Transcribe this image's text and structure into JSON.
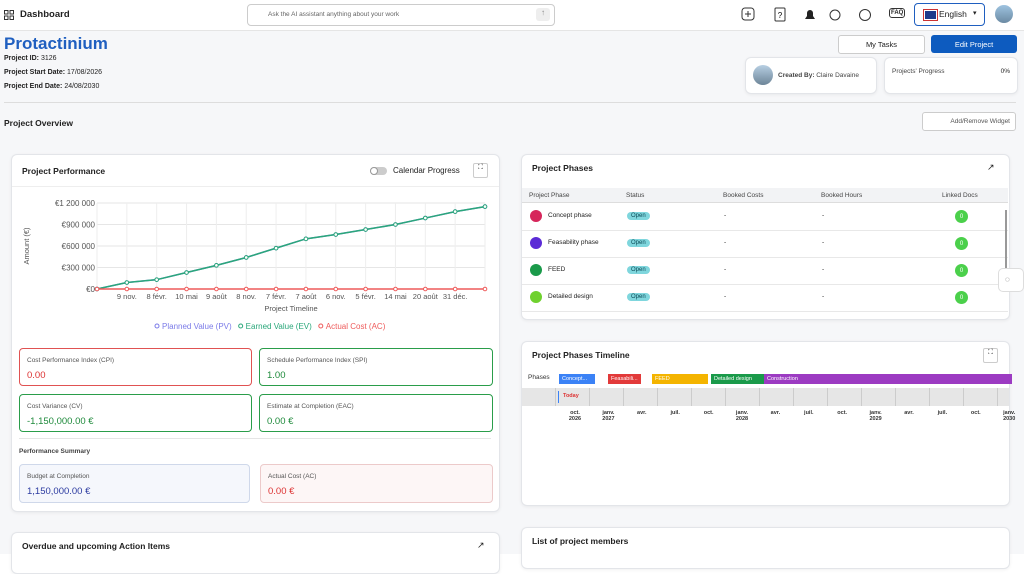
{
  "nav": {
    "title": "Dashboard",
    "search_placeholder": "Ask the AI assistant anything about your work",
    "faq": "FAQ",
    "language": "English"
  },
  "project": {
    "name": "Protactinium",
    "id_label": "Project ID:",
    "id": "3126",
    "start_label": "Project Start Date:",
    "start": "17/08/2026",
    "end_label": "Project End Date:",
    "end": "24/08/2030"
  },
  "buttons": {
    "my_tasks": "My Tasks",
    "edit": "Edit Project",
    "widget": "Add/Remove Widget"
  },
  "created_by": {
    "label": "Created By:",
    "name": "Claire Davaine"
  },
  "progress": {
    "label": "Projects' Progress",
    "value": "0%"
  },
  "overview_title": "Project Overview",
  "performance": {
    "title": "Project Performance",
    "toggle": "Calendar Progress",
    "kpis": [
      {
        "label": "Cost Performance Index (CPI)",
        "value": "0.00"
      },
      {
        "label": "Schedule Performance Index (SPI)",
        "value": "1.00"
      },
      {
        "label": "Cost Variance (CV)",
        "value": "-1,150,000.00 €"
      },
      {
        "label": "Estimate at Completion (EAC)",
        "value": "0.00 €"
      }
    ],
    "summary_title": "Performance Summary",
    "summary": [
      {
        "label": "Budget at Completion",
        "value": "1,150,000.00 €"
      },
      {
        "label": "Actual Cost (AC)",
        "value": "0.00 €"
      }
    ]
  },
  "chart_data": {
    "type": "line",
    "ylabel": "Amount (€)",
    "xlabel": "Project Timeline",
    "categories": [
      null,
      "9 nov.",
      "8 févr.",
      "10 mai",
      "9 août",
      "8 nov.",
      "7 févr.",
      "7 août",
      "6 nov.",
      "5 févr.",
      "14 mai",
      "20 août",
      "31 déc.",
      null
    ],
    "series": [
      {
        "name": "Planned Value (PV)",
        "color": "#7b7be8",
        "values": [
          0,
          90000,
          130000,
          230000,
          330000,
          440000,
          570000,
          700000,
          760000,
          830000,
          900000,
          990000,
          1080000,
          1150000
        ]
      },
      {
        "name": "Earned Value (EV)",
        "color": "#2aa77a",
        "values": [
          0,
          90000,
          130000,
          230000,
          330000,
          440000,
          570000,
          700000,
          760000,
          830000,
          900000,
          990000,
          1080000,
          1150000
        ]
      },
      {
        "name": "Actual Cost (AC)",
        "color": "#ee5a5a",
        "values": [
          0,
          0,
          0,
          0,
          0,
          0,
          0,
          0,
          0,
          0,
          0,
          0,
          0,
          0
        ]
      }
    ],
    "ylim": [
      0,
      1200000
    ],
    "yticks": [
      {
        "value": 0,
        "label": "€0"
      },
      {
        "value": 300000,
        "label": "€300 000"
      },
      {
        "value": 600000,
        "label": "€600 000"
      },
      {
        "value": 900000,
        "label": "€900 000"
      },
      {
        "value": 1200000,
        "label": "€1 200 000"
      }
    ],
    "grid": true
  },
  "phases": {
    "title": "Project Phases",
    "columns": [
      "Project Phase",
      "Status",
      "Booked Costs",
      "Booked Hours",
      "Linked Docs"
    ],
    "rows": [
      [
        "Concept phase",
        "Open",
        "-",
        "-",
        "0"
      ],
      [
        "Feasability phase",
        "Open",
        "-",
        "-",
        "0"
      ],
      [
        "FEED",
        "Open",
        "-",
        "-",
        "0"
      ],
      [
        "Detailed design",
        "Open",
        "-",
        "-",
        "0"
      ]
    ]
  },
  "timeline": {
    "title": "Project Phases Timeline",
    "row_label": "Phases",
    "bars": [
      "Concept...",
      "Feasabili...",
      "FEED",
      "Detailed design",
      "Construction"
    ],
    "today": "Today",
    "axis": [
      {
        "m": "oct.",
        "y": "2026"
      },
      {
        "m": "janv.",
        "y": "2027"
      },
      {
        "m": "avr."
      },
      {
        "m": "juil."
      },
      {
        "m": "oct."
      },
      {
        "m": "janv.",
        "y": "2028"
      },
      {
        "m": "avr."
      },
      {
        "m": "juil."
      },
      {
        "m": "oct."
      },
      {
        "m": "janv.",
        "y": "2029"
      },
      {
        "m": "avr."
      },
      {
        "m": "juil."
      },
      {
        "m": "oct."
      },
      {
        "m": "janv.",
        "y": "2030"
      }
    ]
  },
  "members_title": "List of project members",
  "actions_title": "Overdue and upcoming Action Items"
}
